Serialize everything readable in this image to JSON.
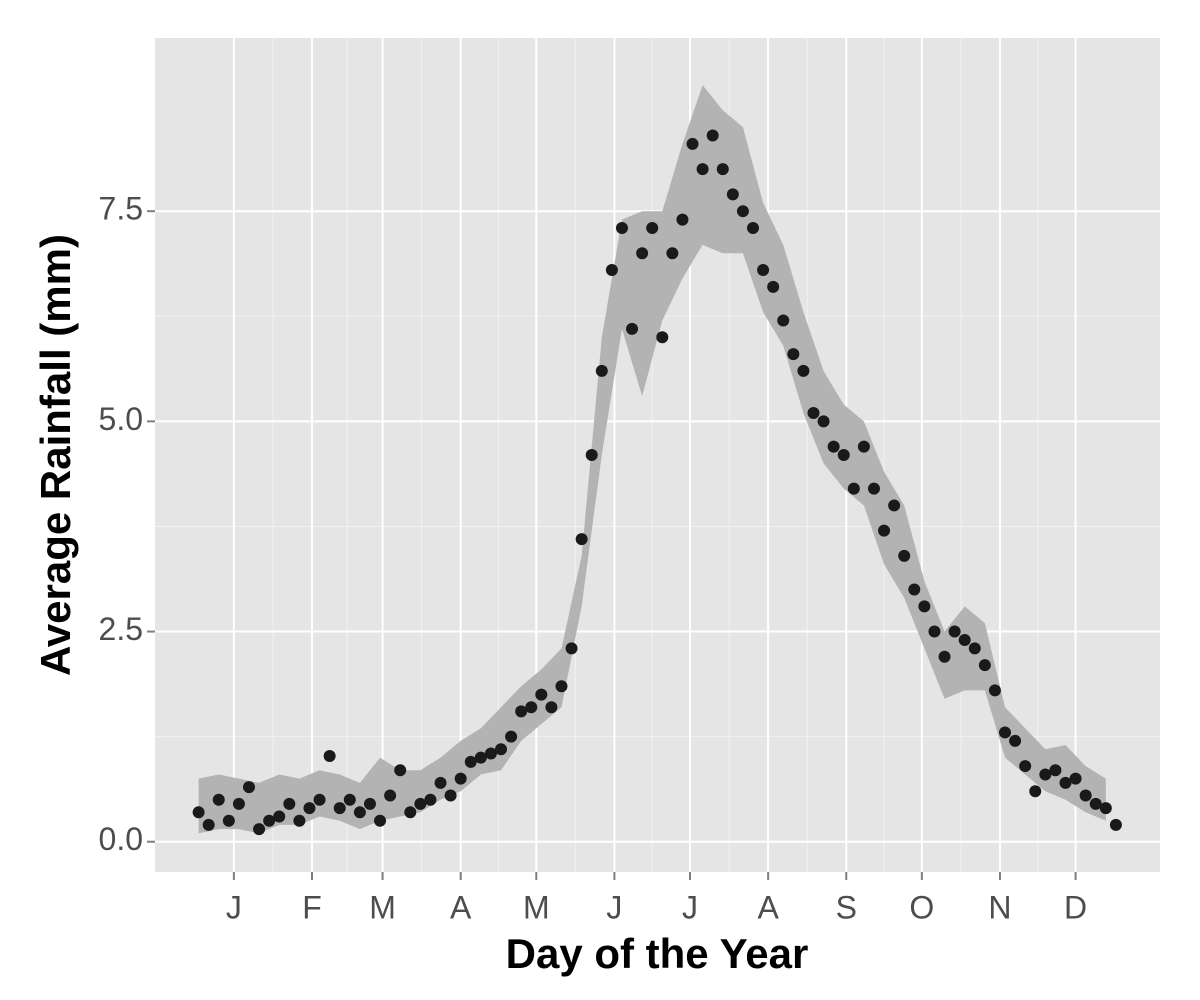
{
  "chart_data": {
    "type": "scatter",
    "x_label": "Day of the Year",
    "y_label": "Average Rainfall (mm)",
    "x": [
      1,
      5,
      9,
      13,
      17,
      21,
      25,
      29,
      33,
      37,
      41,
      45,
      49,
      53,
      57,
      61,
      65,
      69,
      73,
      77,
      81,
      85,
      89,
      93,
      97,
      101,
      105,
      109,
      113,
      117,
      121,
      125,
      129,
      133,
      137,
      141,
      145,
      149,
      153,
      157,
      161,
      165,
      169,
      173,
      177,
      181,
      185,
      189,
      193,
      197,
      201,
      205,
      209,
      213,
      217,
      221,
      225,
      229,
      233,
      237,
      241,
      245,
      249,
      253,
      257,
      261,
      265,
      269,
      273,
      277,
      281,
      285,
      289,
      293,
      297,
      301,
      305,
      309,
      313,
      317,
      321,
      325,
      329,
      333,
      337,
      341,
      345,
      349,
      353,
      357,
      361,
      365
    ],
    "series": [
      {
        "color": "#1a1a1a",
        "values": [
          0.35,
          0.2,
          0.5,
          0.25,
          0.45,
          0.65,
          0.15,
          0.25,
          0.3,
          0.45,
          0.25,
          0.4,
          0.5,
          1.02,
          0.4,
          0.5,
          0.35,
          0.45,
          0.25,
          0.55,
          0.85,
          0.35,
          0.45,
          0.5,
          0.7,
          0.55,
          0.75,
          0.95,
          1.0,
          1.05,
          1.1,
          1.25,
          1.55,
          1.6,
          1.75,
          1.6,
          1.85,
          2.3,
          3.6,
          4.6,
          5.6,
          6.8,
          7.3,
          6.1,
          7.0,
          7.3,
          6.0,
          7.0,
          7.4,
          8.3,
          8.0,
          8.4,
          8.0,
          7.7,
          7.5,
          7.3,
          6.8,
          6.6,
          6.2,
          5.8,
          5.6,
          5.1,
          5.0,
          4.7,
          4.6,
          4.2,
          4.7,
          4.2,
          3.7,
          4.0,
          3.4,
          3.0,
          2.8,
          2.5,
          2.2,
          2.5,
          2.4,
          2.3,
          2.1,
          1.8,
          1.3,
          1.2,
          0.9,
          0.6,
          0.8,
          0.85,
          0.7,
          0.75,
          0.55,
          0.45,
          0.4,
          0.2
        ]
      }
    ],
    "band": {
      "color": "#b3b3b3",
      "x": [
        1,
        9,
        17,
        25,
        33,
        41,
        49,
        57,
        65,
        73,
        81,
        89,
        97,
        105,
        113,
        121,
        129,
        137,
        145,
        153,
        161,
        169,
        177,
        185,
        193,
        201,
        209,
        217,
        225,
        233,
        241,
        249,
        257,
        265,
        273,
        281,
        289,
        297,
        305,
        313,
        321,
        329,
        337,
        345,
        353,
        361
      ],
      "lower": [
        0.1,
        0.15,
        0.15,
        0.1,
        0.2,
        0.2,
        0.3,
        0.25,
        0.15,
        0.25,
        0.3,
        0.35,
        0.5,
        0.6,
        0.8,
        0.85,
        1.2,
        1.4,
        1.6,
        2.8,
        4.6,
        6.1,
        5.3,
        6.2,
        6.7,
        7.1,
        7.0,
        7.0,
        6.3,
        5.9,
        5.1,
        4.5,
        4.2,
        4.0,
        3.3,
        2.9,
        2.3,
        1.7,
        1.8,
        1.8,
        1.0,
        0.8,
        0.6,
        0.5,
        0.35,
        0.25
      ],
      "upper": [
        0.75,
        0.8,
        0.75,
        0.7,
        0.8,
        0.75,
        0.85,
        0.8,
        0.7,
        1.0,
        0.85,
        0.85,
        1.0,
        1.2,
        1.35,
        1.6,
        1.85,
        2.05,
        2.3,
        3.4,
        6.0,
        7.4,
        7.5,
        7.5,
        8.3,
        9.0,
        8.7,
        8.5,
        7.6,
        7.1,
        6.3,
        5.6,
        5.2,
        5.0,
        4.4,
        4.0,
        3.1,
        2.5,
        2.8,
        2.6,
        1.6,
        1.35,
        1.1,
        1.15,
        0.9,
        0.75
      ]
    },
    "xlim": [
      -16.3,
      382.5
    ],
    "xticks": [
      {
        "value": 15,
        "label": "J"
      },
      {
        "value": 46,
        "label": "F"
      },
      {
        "value": 74,
        "label": "M"
      },
      {
        "value": 105,
        "label": "A"
      },
      {
        "value": 135,
        "label": "M"
      },
      {
        "value": 166,
        "label": "J"
      },
      {
        "value": 196,
        "label": "J"
      },
      {
        "value": 227,
        "label": "A"
      },
      {
        "value": 258,
        "label": "S"
      },
      {
        "value": 288,
        "label": "O"
      },
      {
        "value": 319,
        "label": "N"
      },
      {
        "value": 349,
        "label": "D"
      }
    ],
    "ylim": [
      -0.36,
      9.56
    ],
    "yticks": [
      {
        "value": 0,
        "label": "0.0"
      },
      2.5,
      {
        "value": 5,
        "label": "5.0"
      },
      7.5
    ],
    "grid": true
  }
}
